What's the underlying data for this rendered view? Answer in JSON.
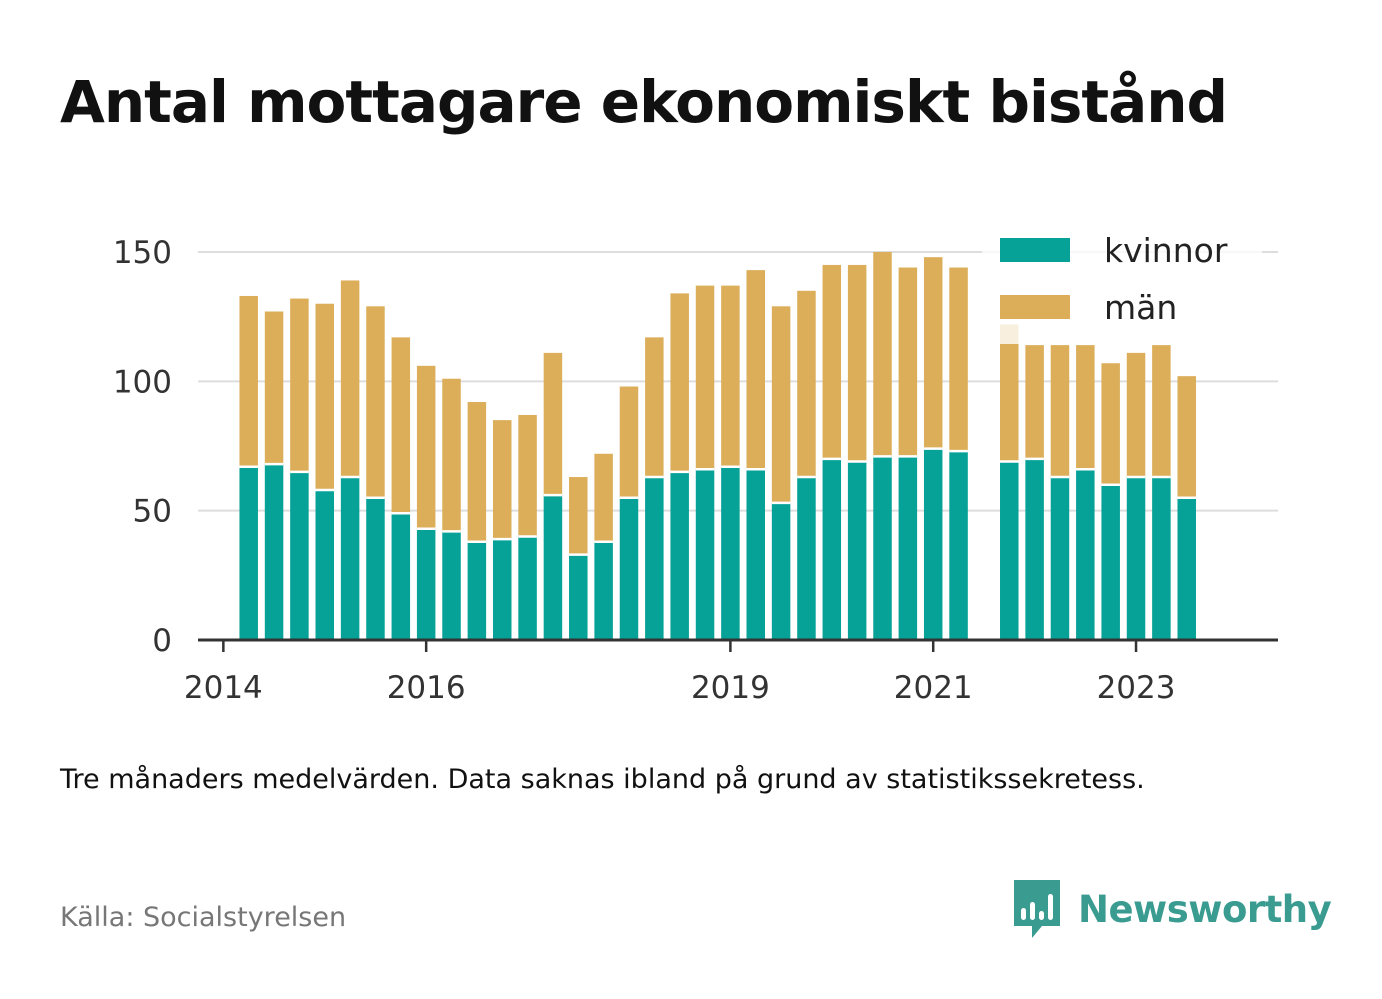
{
  "title": "Antal mottagare ekonomiskt bistånd",
  "note": "Tre månaders medelvärden. Data saknas ibland på grund av statistikssekretess.",
  "source": "Källa: Socialstyrelsen",
  "brand": {
    "name": "Newsworthy",
    "icon": "newsworthy-logo-icon",
    "color": "#3a9b90"
  },
  "colors": {
    "kvinnor": "#06a298",
    "man": "#dcae5a",
    "grid": "#dddddd",
    "axis": "#333333"
  },
  "chart_data": {
    "type": "bar",
    "stacked": true,
    "x_unit": "quarter",
    "xlim": [
      2013.75,
      2024.4
    ],
    "ylim": [
      0,
      160
    ],
    "yticks": [
      0,
      50,
      100,
      150
    ],
    "xticks": [
      {
        "value": 2014,
        "label": "2014"
      },
      {
        "value": 2016,
        "label": "2016"
      },
      {
        "value": 2019,
        "label": "2019"
      },
      {
        "value": 2021,
        "label": "2021"
      },
      {
        "value": 2023,
        "label": "2023"
      }
    ],
    "grid": true,
    "legend": "top-right",
    "xlabel": "",
    "ylabel": "",
    "x": [
      2014.25,
      2014.5,
      2014.75,
      2015.0,
      2015.25,
      2015.5,
      2015.75,
      2016.0,
      2016.25,
      2016.5,
      2016.75,
      2017.0,
      2017.25,
      2017.5,
      2017.75,
      2018.0,
      2018.25,
      2018.5,
      2018.75,
      2019.0,
      2019.25,
      2019.5,
      2019.75,
      2020.0,
      2020.25,
      2020.5,
      2020.75,
      2021.0,
      2021.25,
      2021.5,
      2021.75,
      2022.0,
      2022.25,
      2022.5,
      2022.75,
      2023.0,
      2023.25,
      2023.5
    ],
    "series": [
      {
        "name": "kvinnor",
        "color": "#06a298",
        "values": [
          67,
          68,
          65,
          58,
          63,
          55,
          49,
          43,
          42,
          38,
          39,
          40,
          56,
          33,
          38,
          55,
          63,
          65,
          66,
          67,
          66,
          53,
          63,
          70,
          69,
          71,
          71,
          74,
          73,
          null,
          69,
          70,
          63,
          66,
          60,
          63,
          63,
          55
        ]
      },
      {
        "name": "män",
        "color": "#dcae5a",
        "values": [
          66,
          59,
          67,
          72,
          76,
          74,
          68,
          63,
          59,
          54,
          46,
          47,
          55,
          30,
          34,
          43,
          54,
          69,
          71,
          70,
          77,
          76,
          72,
          75,
          76,
          79,
          73,
          74,
          71,
          null,
          53,
          44,
          51,
          48,
          47,
          48,
          51,
          47
        ]
      }
    ]
  }
}
